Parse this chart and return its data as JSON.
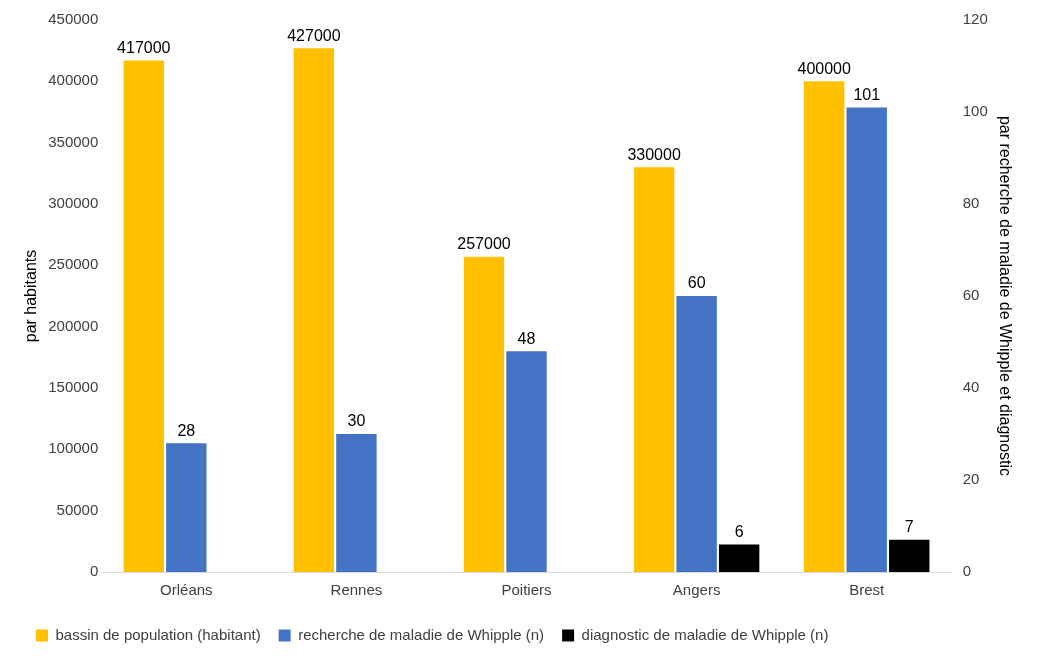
{
  "chart_data": {
    "type": "bar",
    "ylabel": "par habitants",
    "y2label": "par recherche de maladie de Whipple et diagnostic",
    "categories": [
      "Orléans",
      "Rennes",
      "Poitiers",
      "Angers",
      "Brest"
    ],
    "series": [
      {
        "name": "bassin de population (habitant)",
        "color": "#ffc000",
        "values": [
          417000,
          427000,
          257000,
          330000,
          400000
        ]
      },
      {
        "name": "recherche de maladie de Whipple (n)",
        "color": "#4472c4",
        "values": [
          28,
          30,
          48,
          60,
          101
        ],
        "axis": "y2"
      },
      {
        "name": "diagnostic de maladie de Whipple (n)",
        "color": "#000000",
        "values": [
          null,
          null,
          null,
          6,
          7
        ],
        "axis": "y2"
      }
    ],
    "ylim": [
      0,
      450000
    ],
    "yticks": [
      0,
      50000,
      100000,
      150000,
      200000,
      250000,
      300000,
      350000,
      400000,
      450000
    ],
    "y2lim": [
      0,
      120
    ],
    "y2ticks": [
      0,
      20,
      40,
      60,
      80,
      100,
      120
    ],
    "data_labels": true,
    "legend": "bottom",
    "grid": false
  }
}
